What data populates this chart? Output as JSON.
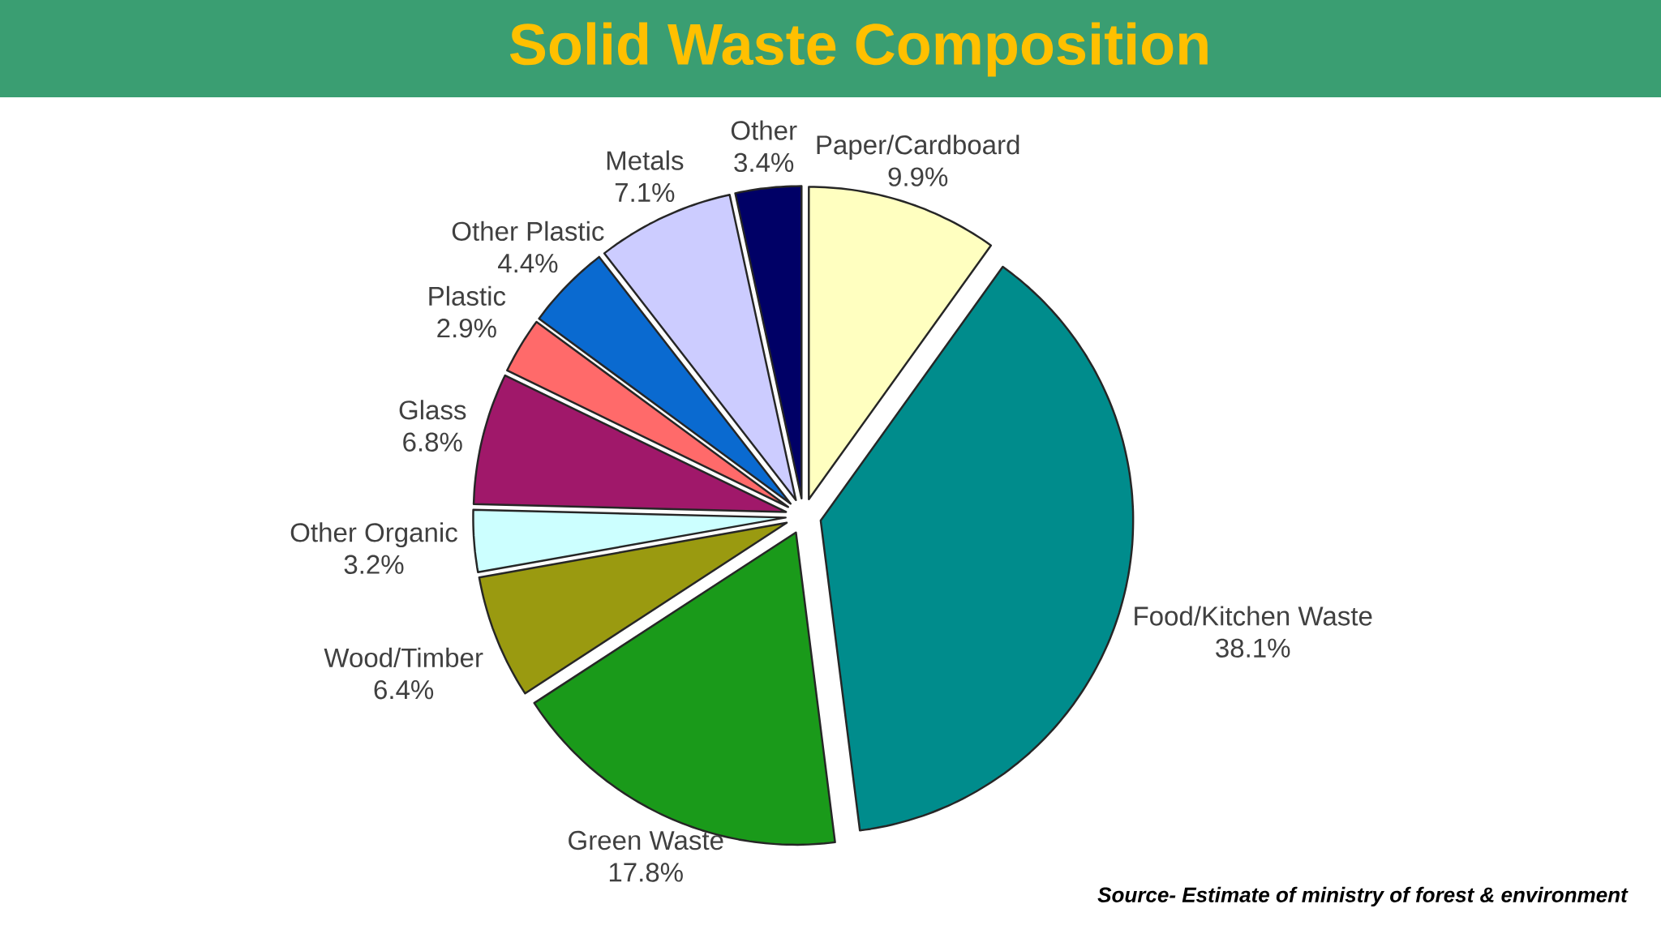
{
  "chart_data": {
    "type": "pie",
    "title": "Solid Waste Composition",
    "categories": [
      "Paper/Cardboard",
      "Food/Kitchen Waste",
      "Green Waste",
      "Wood/Timber",
      "Other Organic",
      "Glass",
      "Plastic",
      "Other Plastic",
      "Metals",
      "Other"
    ],
    "values": [
      9.9,
      38.1,
      17.8,
      6.4,
      3.2,
      6.8,
      2.9,
      4.4,
      7.1,
      3.4
    ],
    "colors": [
      "#ffffc0",
      "#008c8c",
      "#1a9a1a",
      "#9a9a10",
      "#ccffff",
      "#a0186a",
      "#ff6a6a",
      "#0a6ad0",
      "#ccccff",
      "#000066"
    ],
    "value_labels": [
      "9.9%",
      "38.1%",
      "17.8%",
      "6.4%",
      "3.2%",
      "6.8%",
      "2.9%",
      "4.4%",
      "7.1%",
      "3.4%"
    ],
    "annotations": [
      "Source- Estimate of ministry of forest & environment"
    ]
  }
}
